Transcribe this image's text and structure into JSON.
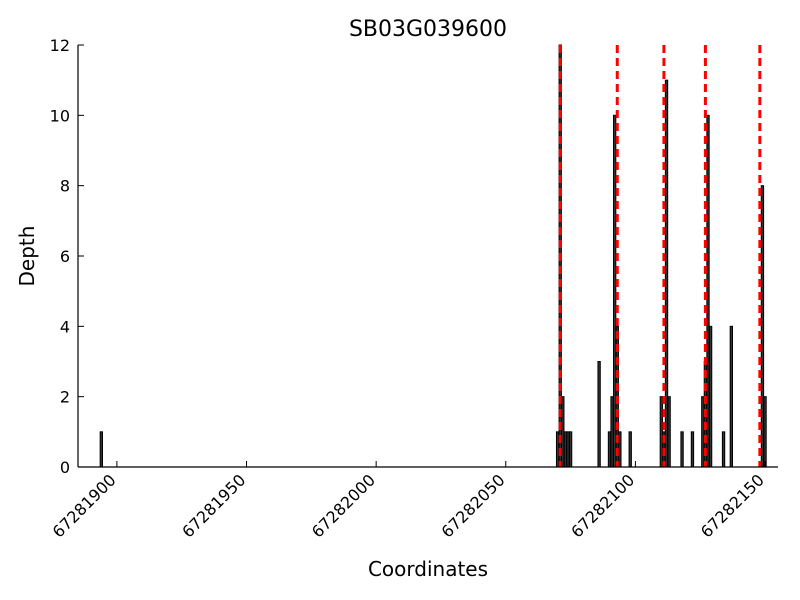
{
  "chart_data": {
    "type": "bar",
    "title": "SB03G039600",
    "xlabel": "Coordinates",
    "ylabel": "Depth",
    "xlim": [
      67281885,
      67282155
    ],
    "ylim": [
      0,
      12
    ],
    "x_ticks": [
      67281900,
      67281950,
      67282000,
      67282050,
      67282100,
      67282150
    ],
    "y_ticks": [
      0,
      2,
      4,
      6,
      8,
      10,
      12
    ],
    "grid": false,
    "colors": {
      "bar_fill": "#333333",
      "bar_edge": "#000000",
      "marker_line": "#ff0000"
    },
    "bars": {
      "x": [
        67281894,
        67282070,
        67282071,
        67282072,
        67282073,
        67282074,
        67282075,
        67282086,
        67282090,
        67282091,
        67282092,
        67282093,
        67282094,
        67282098,
        67282110,
        67282111,
        67282112,
        67282113,
        67282114,
        67282118,
        67282122,
        67282126,
        67282127,
        67282128,
        67282129,
        67282130,
        67282134,
        67282137,
        67282149,
        67282150
      ],
      "values": [
        1,
        1,
        12,
        2,
        1,
        1,
        1,
        3,
        1,
        2,
        10,
        4,
        1,
        1,
        2,
        1,
        11,
        2,
        0,
        1,
        1,
        2,
        3,
        10,
        4,
        0,
        1,
        4,
        8,
        2
      ]
    },
    "marker_lines": {
      "style": "dashed",
      "x": [
        67282071,
        67282093,
        67282111,
        67282127,
        67282148
      ]
    }
  }
}
